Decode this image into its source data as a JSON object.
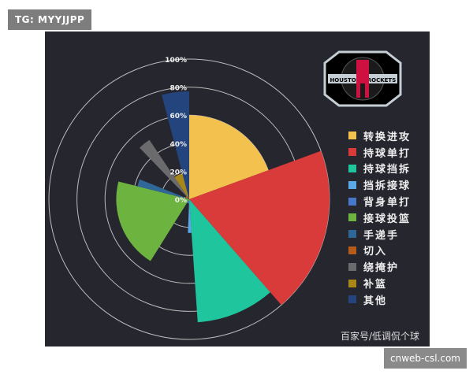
{
  "watermarks": {
    "top_left": "TG: MYYJJPP",
    "bottom_right": "cnweb-csl.com"
  },
  "source": "百家号/低调侃个球",
  "logo": {
    "text": "HOUSTON ROCKETS",
    "colors": [
      "#ce1141",
      "#c4ced4",
      "#000000"
    ]
  },
  "chart_data": {
    "type": "polar-area",
    "background": "#26262f",
    "radial_axis": {
      "ticks": [
        "0%",
        "20%",
        "40%",
        "60%",
        "80%",
        "100%"
      ],
      "range": [
        0,
        100
      ],
      "grid": true
    },
    "legend_position": "right",
    "series": [
      {
        "name": "转换进攻",
        "color": "#f2c14e",
        "share": 19.4,
        "value": 60
      },
      {
        "name": "持球单打",
        "color": "#d93b3b",
        "share": 19.2,
        "value": 100
      },
      {
        "name": "持球挡拆",
        "color": "#1fc59c",
        "share": 10.3,
        "value": 88
      },
      {
        "name": "挡拆接球",
        "color": "#5aa9e6",
        "share": 1.7,
        "value": 24
      },
      {
        "name": "背身单打",
        "color": "#4a78c8",
        "share": 8.3,
        "value": 3
      },
      {
        "name": "接球投篮",
        "color": "#6db33f",
        "share": 20.0,
        "value": 52
      },
      {
        "name": "手递手",
        "color": "#2f6799",
        "share": 2.2,
        "value": 38
      },
      {
        "name": "切入",
        "color": "#b55c1c",
        "share": 6.7,
        "value": 3
      },
      {
        "name": "绕掩护",
        "color": "#6b6b6e",
        "share": 2.8,
        "value": 51
      },
      {
        "name": "补篮",
        "color": "#a8871a",
        "share": 5.3,
        "value": 19
      },
      {
        "name": "其他",
        "color": "#24447e",
        "share": 4.1,
        "value": 77
      }
    ]
  }
}
